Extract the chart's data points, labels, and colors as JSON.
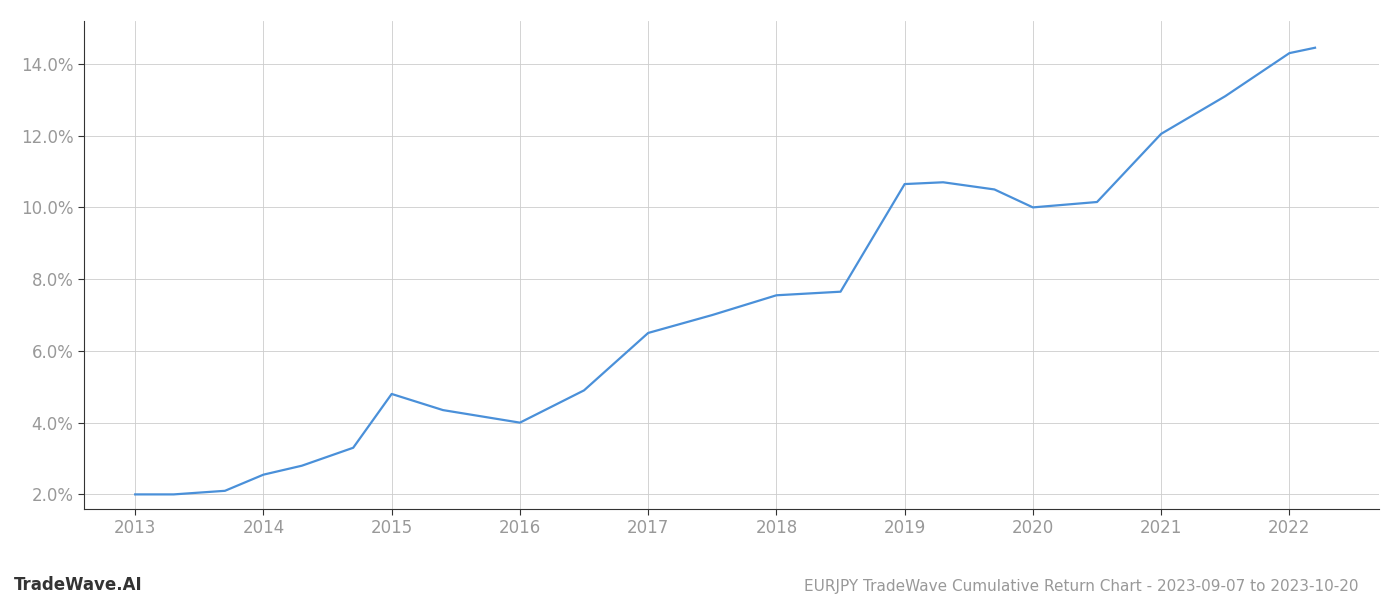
{
  "x_values": [
    2013.0,
    2013.3,
    2013.7,
    2014.0,
    2014.3,
    2014.7,
    2015.0,
    2015.4,
    2016.0,
    2016.5,
    2017.0,
    2017.5,
    2018.0,
    2018.5,
    2019.0,
    2019.3,
    2019.7,
    2020.0,
    2020.5,
    2021.0,
    2021.5,
    2022.0,
    2022.2
  ],
  "y_values": [
    2.0,
    2.0,
    2.1,
    2.55,
    2.8,
    3.3,
    4.8,
    4.35,
    4.0,
    4.9,
    6.5,
    7.0,
    7.55,
    7.65,
    10.65,
    10.7,
    10.5,
    10.0,
    10.15,
    12.05,
    13.1,
    14.3,
    14.45
  ],
  "line_color": "#4a90d9",
  "background_color": "#ffffff",
  "grid_color": "#cccccc",
  "title": "EURJPY TradeWave Cumulative Return Chart - 2023-09-07 to 2023-10-20",
  "watermark": "TradeWave.AI",
  "xlim": [
    2012.6,
    2022.7
  ],
  "ylim": [
    1.6,
    15.2
  ],
  "xticks": [
    2013,
    2014,
    2015,
    2016,
    2017,
    2018,
    2019,
    2020,
    2021,
    2022
  ],
  "yticks": [
    2.0,
    4.0,
    6.0,
    8.0,
    10.0,
    12.0,
    14.0
  ],
  "tick_label_color": "#999999",
  "title_color": "#999999",
  "watermark_color": "#333333",
  "line_width": 1.6,
  "font_size_ticks": 12,
  "font_size_title": 11,
  "font_size_watermark": 12,
  "spine_color": "#333333"
}
